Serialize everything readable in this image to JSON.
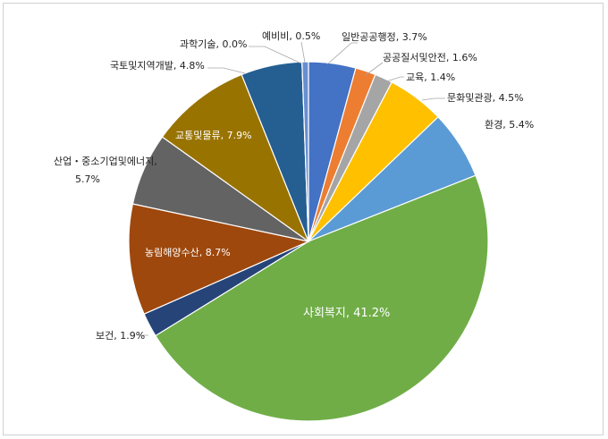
{
  "chart_data": {
    "type": "pie",
    "title": "",
    "slices": [
      {
        "name": "일반공공행정",
        "value": 3.7,
        "label": "일반공공행정, 3.7%",
        "color": "#4472C4"
      },
      {
        "name": "공공질서및안전",
        "value": 1.6,
        "label": "공공질서및안전, 1.6%",
        "color": "#ED7D31"
      },
      {
        "name": "교육",
        "value": 1.4,
        "label": "교육, 1.4%",
        "color": "#A5A5A5"
      },
      {
        "name": "문화및관광",
        "value": 4.5,
        "label": "문화및관광, 4.5%",
        "color": "#FFC000"
      },
      {
        "name": "환경",
        "value": 5.4,
        "label": "환경, 5.4%",
        "color": "#5B9BD5"
      },
      {
        "name": "사회복지",
        "value": 41.2,
        "label": "사회복지, 41.2%",
        "color": "#70AD47"
      },
      {
        "name": "보건",
        "value": 1.9,
        "label": "보건, 1.9%",
        "color": "#264478"
      },
      {
        "name": "농림해양수산",
        "value": 8.7,
        "label": "농림해양수산, 8.7%",
        "color": "#9E480E"
      },
      {
        "name": "산업・중소기업및에너지",
        "value": 5.7,
        "label_line1": "산업・중소기업및에너지,",
        "label_line2": "5.7%",
        "color": "#636363"
      },
      {
        "name": "교통및물류",
        "value": 7.9,
        "label": "교통및물류, 7.9%",
        "color": "#997300"
      },
      {
        "name": "국토및지역개발",
        "value": 4.8,
        "label": "국토및지역개발, 4.8%",
        "color": "#255E91"
      },
      {
        "name": "과학기술",
        "value": 0.0,
        "label": "과학기술, 0.0%",
        "color": "#43682B"
      },
      {
        "name": "예비비",
        "value": 0.5,
        "label": "예비비, 0.5%",
        "color": "#698ED0"
      }
    ]
  }
}
